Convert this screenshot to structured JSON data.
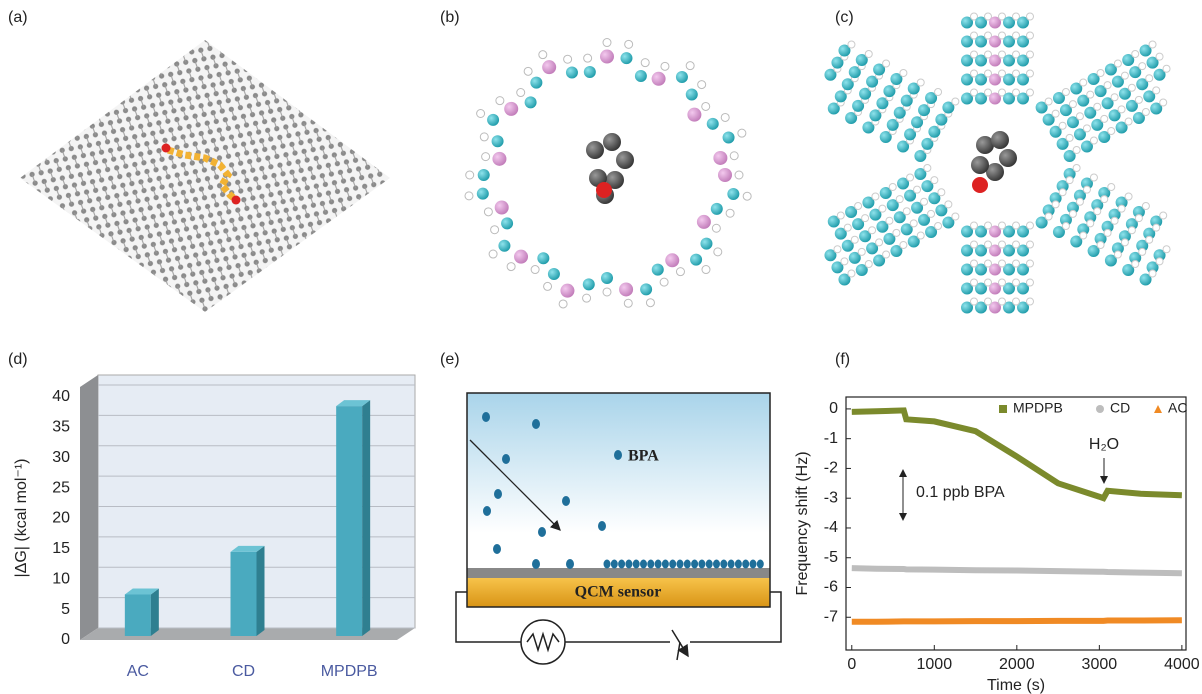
{
  "panels": [
    "(a)",
    "(b)",
    "(c)",
    "(d)",
    "(e)",
    "(f)"
  ],
  "diagram": {
    "molecule_label": "BPA",
    "sensor_label": "QCM sensor"
  },
  "chart_data": [
    {
      "type": "bar3d",
      "ylabel": "|ΔG| (kcal mol⁻¹)",
      "categories": [
        "AC",
        "CD",
        "MPDPB"
      ],
      "values": [
        7.5,
        14.5,
        38.5
      ],
      "color": "#4aaabf",
      "ylim": [
        0,
        40
      ],
      "yticks": [
        0,
        5,
        10,
        15,
        20,
        25,
        30,
        35,
        40
      ],
      "grid": true
    },
    {
      "type": "line",
      "xlabel": "Time (s)",
      "ylabel": "Frequency shift (Hz)",
      "x": [
        0,
        300,
        630,
        660,
        1000,
        1500,
        2000,
        2500,
        3000,
        3050,
        3100,
        3500,
        4000
      ],
      "series": [
        {
          "name": "MPDPB",
          "color": "#7b8a2c",
          "marker": "square",
          "values": [
            -0.1,
            -0.08,
            -0.05,
            -0.35,
            -0.42,
            -0.75,
            -1.6,
            -2.5,
            -2.95,
            -3.0,
            -2.75,
            -2.85,
            -2.9
          ]
        },
        {
          "name": "CD",
          "color": "#bdbdbd",
          "marker": "circle",
          "values": [
            -5.35,
            -5.37,
            -5.38,
            -5.39,
            -5.4,
            -5.42,
            -5.43,
            -5.45,
            -5.47,
            -5.47,
            -5.48,
            -5.5,
            -5.52
          ]
        },
        {
          "name": "AC",
          "color": "#f08a24",
          "marker": "triangle",
          "values": [
            -7.15,
            -7.15,
            -7.14,
            -7.14,
            -7.14,
            -7.13,
            -7.13,
            -7.12,
            -7.12,
            -7.12,
            -7.11,
            -7.11,
            -7.1
          ]
        }
      ],
      "annotations": [
        "H₂O",
        "0.1 ppb BPA"
      ],
      "xlim": [
        -70,
        4050
      ],
      "xticks": [
        0,
        1000,
        2000,
        3000,
        4000
      ],
      "ylim": [
        -8.1,
        0.4
      ],
      "yticks": [
        0,
        -1,
        -2,
        -3,
        -4,
        -5,
        -6,
        -7
      ]
    }
  ]
}
